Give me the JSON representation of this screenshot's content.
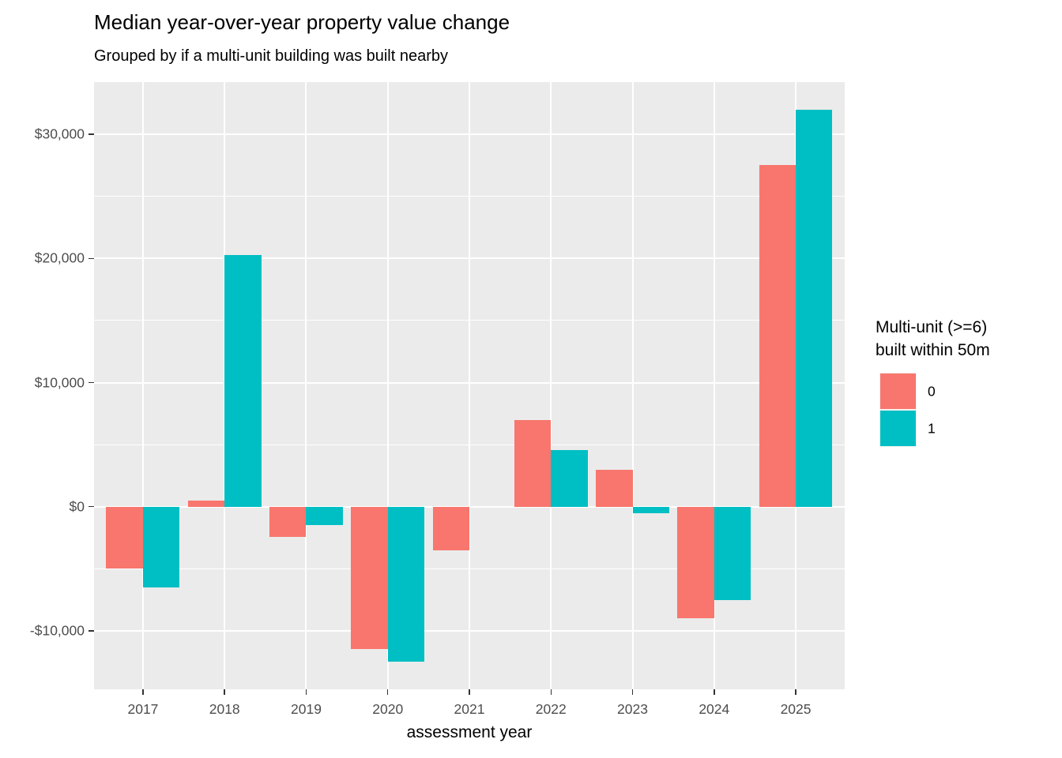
{
  "title": "Median year-over-year property value change",
  "subtitle": "Grouped by if a multi-unit building was built nearby",
  "chart_data": {
    "type": "bar",
    "categories": [
      "2017",
      "2018",
      "2019",
      "2020",
      "2021",
      "2022",
      "2023",
      "2024",
      "2025"
    ],
    "series": [
      {
        "name": "0",
        "color": "#F8766D",
        "values": [
          -5000,
          500,
          -2450,
          -11500,
          -3500,
          7000,
          3000,
          -9000,
          27500
        ]
      },
      {
        "name": "1",
        "color": "#00BFC4",
        "values": [
          -6500,
          20250,
          -1500,
          -12500,
          null,
          4550,
          -550,
          -7550,
          32000
        ]
      }
    ],
    "title": "Median year-over-year property value change",
    "subtitle": "Grouped by if a multi-unit building was built nearby",
    "xlabel": "assessment year",
    "ylabel": "",
    "ylim": [
      -14800,
      34200
    ],
    "y_major_ticks": [
      {
        "value": 30000,
        "label": "$30,000"
      },
      {
        "value": 20000,
        "label": "$20,000"
      },
      {
        "value": 10000,
        "label": "$10,000"
      },
      {
        "value": 0,
        "label": "$0"
      },
      {
        "value": -10000,
        "label": "-$10,000"
      }
    ],
    "y_minor_ticks": [
      25000,
      15000,
      5000,
      -5000
    ],
    "grid": true,
    "legend_position": "right",
    "panel_background": "#EBEBEB",
    "grid_color": "#FFFFFF",
    "axis_text_color": "#4D4D4D"
  },
  "legend": {
    "title_line1": "Multi-unit (>=6)",
    "title_line2": "built within 50m",
    "entries": [
      {
        "label": "0",
        "color": "#F8766D"
      },
      {
        "label": "1",
        "color": "#00BFC4"
      }
    ]
  }
}
